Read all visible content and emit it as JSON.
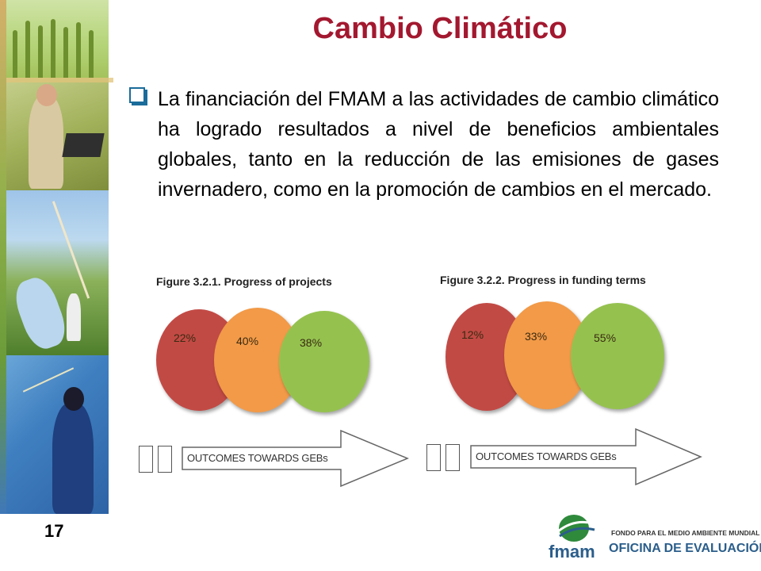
{
  "slide": {
    "title": "Cambio Climático",
    "bullet": "La financiación del FMAM a las actividades de cambio climático ha logrado resultados a nivel de beneficios ambientales globales, tanto en la reducción de las emisiones de gases invernadero, como en la promoción de cambios en el mercado.",
    "page_number": "17"
  },
  "figures": [
    {
      "title": "Figure 3.2.1. Progress of projects",
      "values": [
        "22%",
        "40%",
        "38%"
      ],
      "outcome_label": "OUTCOMES TOWARDS GEBs"
    },
    {
      "title": "Figure 3.2.2. Progress in funding terms",
      "values": [
        "12%",
        "33%",
        "55%"
      ],
      "outcome_label": "OUTCOMES TOWARDS GEBs"
    }
  ],
  "logo": {
    "word": "fmam",
    "line1": "FONDO PARA EL MEDIO AMBIENTE MUNDIAL",
    "line2": "OFICINA DE EVALUACIÓN"
  },
  "colors": {
    "title": "#a3182f",
    "circle_red": "#c24a45",
    "circle_orange": "#f29a48",
    "circle_green": "#95c24f"
  },
  "icons": {
    "bullet": "square-bullet-icon",
    "logo": "globe-icon"
  }
}
